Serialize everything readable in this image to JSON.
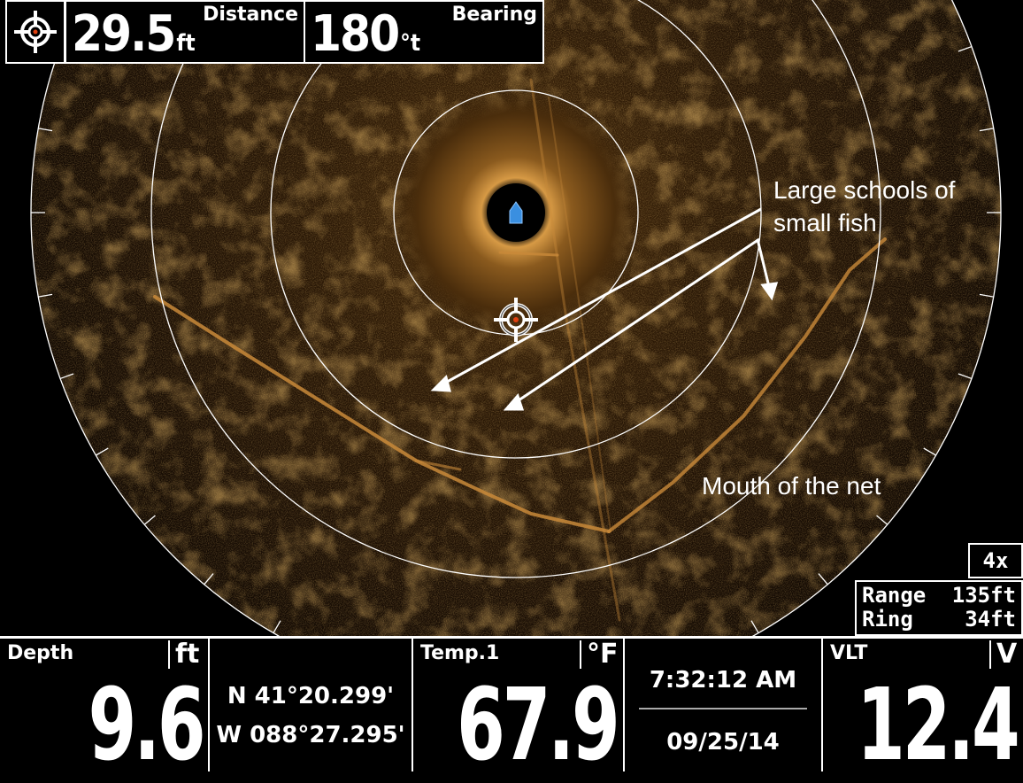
{
  "header": {
    "distance": {
      "value": "29.5",
      "unit": "ft",
      "label": "Distance"
    },
    "bearing": {
      "value": "180",
      "unit": "°t",
      "label": "Bearing"
    }
  },
  "sonar": {
    "annotations": {
      "fish_line1": "Large schools of",
      "fish_line2": "small fish",
      "net": "Mouth of the net"
    },
    "zoom": "4x",
    "range_label": "Range",
    "range_value": "135ft",
    "ring_label": "Ring",
    "ring_value": "34ft"
  },
  "status_bar": {
    "depth": {
      "label": "Depth",
      "unit": "ft",
      "value": "9.6"
    },
    "position": {
      "lat": "N 41°20.299'",
      "lon": "W 088°27.295'"
    },
    "temp": {
      "label": "Temp.1",
      "unit": "°F",
      "value": "67.9"
    },
    "time": "7:32:12 AM",
    "date": "09/25/14",
    "voltage": {
      "label": "VLT",
      "unit": "V",
      "value": "12.4"
    }
  },
  "colors": {
    "sonar_amber": "#b5772a",
    "sonar_dark": "#1a0e04",
    "boat_icon": "#3a8fe0",
    "ring": "#ffffff"
  },
  "icons": [
    "crosshair-icon",
    "boat-icon",
    "cursor-target-icon"
  ]
}
